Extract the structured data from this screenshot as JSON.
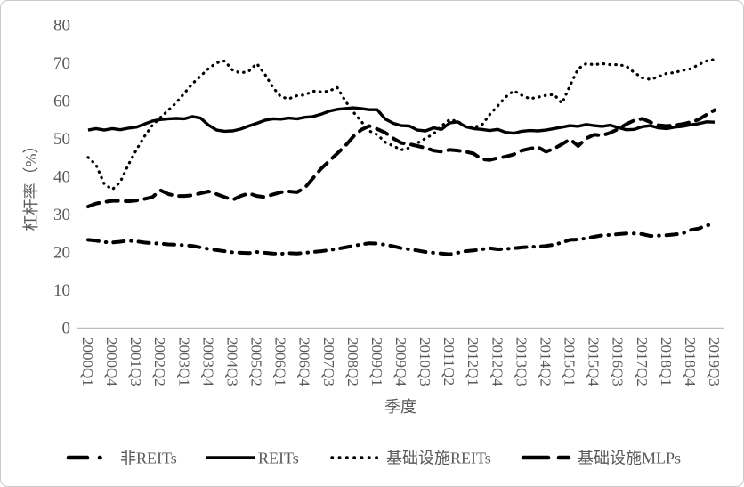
{
  "chart_data": {
    "type": "line",
    "title": "",
    "xlabel": "季度",
    "ylabel": "杠杆率（%）",
    "ylim": [
      0,
      80
    ],
    "y_ticks": [
      0,
      10,
      20,
      30,
      40,
      50,
      60,
      70,
      80
    ],
    "grid": false,
    "legend_position": "bottom",
    "axis_color": "#bfbfbf",
    "text_color": "#595959",
    "line_color": "#000000",
    "x_tick_labels": [
      "2000Q1",
      "2000Q4",
      "2001Q3",
      "2002Q2",
      "2003Q1",
      "2003Q4",
      "2004Q3",
      "2005Q2",
      "2006Q1",
      "2006Q4",
      "2007Q3",
      "2008Q2",
      "2009Q1",
      "2009Q4",
      "2010Q3",
      "2011Q2",
      "2012Q1",
      "2012Q4",
      "2013Q3",
      "2014Q2",
      "2015Q1",
      "2015Q4",
      "2016Q3",
      "2017Q2",
      "2018Q1",
      "2018Q4",
      "2019Q3"
    ],
    "categories": [
      "2000Q1",
      "2000Q2",
      "2000Q3",
      "2000Q4",
      "2001Q1",
      "2001Q2",
      "2001Q3",
      "2001Q4",
      "2002Q1",
      "2002Q2",
      "2002Q3",
      "2002Q4",
      "2003Q1",
      "2003Q2",
      "2003Q3",
      "2003Q4",
      "2004Q1",
      "2004Q2",
      "2004Q3",
      "2004Q4",
      "2005Q1",
      "2005Q2",
      "2005Q3",
      "2005Q4",
      "2006Q1",
      "2006Q2",
      "2006Q3",
      "2006Q4",
      "2007Q1",
      "2007Q2",
      "2007Q3",
      "2007Q4",
      "2008Q1",
      "2008Q2",
      "2008Q3",
      "2008Q4",
      "2009Q1",
      "2009Q2",
      "2009Q3",
      "2009Q4",
      "2010Q1",
      "2010Q2",
      "2010Q3",
      "2010Q4",
      "2011Q1",
      "2011Q2",
      "2011Q3",
      "2011Q4",
      "2012Q1",
      "2012Q2",
      "2012Q3",
      "2012Q4",
      "2013Q1",
      "2013Q2",
      "2013Q3",
      "2013Q4",
      "2014Q1",
      "2014Q2",
      "2014Q3",
      "2014Q4",
      "2015Q1",
      "2015Q2",
      "2015Q3",
      "2015Q4",
      "2016Q1",
      "2016Q2",
      "2016Q3",
      "2016Q4",
      "2017Q1",
      "2017Q2",
      "2017Q3",
      "2017Q4",
      "2018Q1",
      "2018Q2",
      "2018Q3",
      "2018Q4",
      "2019Q1",
      "2019Q2",
      "2019Q3"
    ],
    "series": [
      {
        "id": "nonreits",
        "name": "非REITs",
        "style": "dashdot",
        "values": [
          23.2,
          23.0,
          22.6,
          22.5,
          22.7,
          23.0,
          22.8,
          22.5,
          22.3,
          22.2,
          22.0,
          21.9,
          21.8,
          21.6,
          21.2,
          20.8,
          20.5,
          20.2,
          19.9,
          19.8,
          19.7,
          20.0,
          19.8,
          19.6,
          19.5,
          19.7,
          19.6,
          19.8,
          20.0,
          20.2,
          20.5,
          20.8,
          21.2,
          21.6,
          22.0,
          22.3,
          22.2,
          21.9,
          21.5,
          21.0,
          20.7,
          20.4,
          20.0,
          19.8,
          19.6,
          19.4,
          19.8,
          20.2,
          20.4,
          20.7,
          21.0,
          20.7,
          20.8,
          21.0,
          21.2,
          21.4,
          21.4,
          21.6,
          21.9,
          22.5,
          23.2,
          23.3,
          23.6,
          24.0,
          24.4,
          24.5,
          24.7,
          24.9,
          24.9,
          24.7,
          24.2,
          24.3,
          24.4,
          24.6,
          24.9,
          25.8,
          26.2,
          27.0,
          27.4
        ]
      },
      {
        "id": "reits",
        "name": "REITs",
        "style": "solid",
        "values": [
          52.2,
          52.6,
          52.2,
          52.6,
          52.3,
          52.7,
          53.0,
          53.8,
          54.6,
          55.0,
          55.2,
          55.3,
          55.2,
          55.8,
          55.4,
          53.5,
          52.2,
          51.9,
          52.0,
          52.5,
          53.3,
          54.0,
          54.8,
          55.2,
          55.1,
          55.4,
          55.2,
          55.6,
          55.8,
          56.4,
          57.2,
          57.7,
          57.9,
          58.1,
          57.9,
          57.6,
          57.6,
          55.1,
          54.0,
          53.4,
          53.3,
          52.2,
          52.0,
          52.8,
          52.4,
          54.1,
          54.4,
          53.1,
          52.6,
          52.4,
          52.1,
          52.4,
          51.6,
          51.4,
          51.9,
          52.1,
          52.0,
          52.2,
          52.6,
          53.0,
          53.4,
          53.2,
          53.7,
          53.4,
          53.2,
          53.5,
          52.9,
          52.3,
          52.4,
          53.1,
          53.4,
          52.8,
          52.6,
          53.0,
          53.2,
          53.6,
          53.9,
          54.4,
          54.3
        ]
      },
      {
        "id": "infra-reits",
        "name": "基础设施REITs",
        "style": "dotted",
        "values": [
          45.0,
          43.0,
          38.0,
          36.5,
          38.5,
          43.0,
          47.0,
          50.5,
          53.5,
          55.5,
          57.5,
          59.5,
          62.0,
          64.5,
          66.5,
          68.5,
          70.0,
          70.5,
          68.0,
          67.3,
          67.8,
          69.8,
          67.0,
          63.5,
          61.0,
          60.5,
          61.3,
          61.5,
          62.5,
          62.3,
          62.5,
          63.5,
          60.0,
          57.0,
          54.5,
          52.0,
          51.0,
          49.0,
          48.0,
          47.0,
          47.5,
          48.8,
          50.0,
          51.2,
          53.3,
          55.0,
          54.5,
          53.2,
          53.0,
          53.5,
          56.3,
          58.6,
          61.0,
          62.6,
          61.4,
          60.5,
          60.9,
          61.4,
          61.6,
          59.3,
          64.0,
          68.4,
          69.8,
          69.5,
          69.8,
          69.5,
          69.5,
          69.1,
          67.4,
          66.0,
          65.6,
          66.3,
          67.2,
          67.4,
          68.0,
          68.4,
          69.5,
          70.5,
          70.9
        ]
      },
      {
        "id": "infra-mlps",
        "name": "基础设施MLPs",
        "style": "dashed",
        "values": [
          32.0,
          32.8,
          33.2,
          33.5,
          33.5,
          33.4,
          33.6,
          34.0,
          34.5,
          36.3,
          35.3,
          34.8,
          34.8,
          35.0,
          35.5,
          36.0,
          35.3,
          34.5,
          33.8,
          34.8,
          35.5,
          34.8,
          34.5,
          35.2,
          35.8,
          36.0,
          35.8,
          37.0,
          39.5,
          42.0,
          44.0,
          46.0,
          48.0,
          50.5,
          52.3,
          53.3,
          52.5,
          51.5,
          50.0,
          48.8,
          48.5,
          48.0,
          47.5,
          46.8,
          46.5,
          47.0,
          46.8,
          46.5,
          46.0,
          44.5,
          44.3,
          44.8,
          45.2,
          45.8,
          46.8,
          47.3,
          47.7,
          46.5,
          47.3,
          48.5,
          49.8,
          48.0,
          50.0,
          51.0,
          50.8,
          51.5,
          52.5,
          53.8,
          54.8,
          55.2,
          54.3,
          53.5,
          53.3,
          53.5,
          53.8,
          54.3,
          55.0,
          56.3,
          57.5
        ]
      }
    ]
  }
}
